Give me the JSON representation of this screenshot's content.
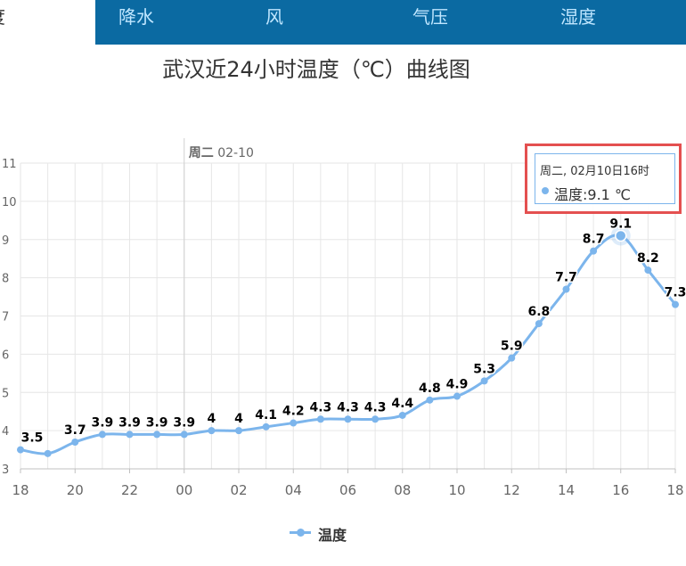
{
  "tabs": [
    {
      "label": "度",
      "active": true
    },
    {
      "label": "降水",
      "active": false
    },
    {
      "label": "风",
      "active": false
    },
    {
      "label": "气压",
      "active": false
    },
    {
      "label": "湿度",
      "active": false
    }
  ],
  "colors": {
    "tab_bar": "#0b6aa2",
    "tab_text": "#bfe6ff",
    "series": "#7cb5ec",
    "grid": "#e6e6e6",
    "highlight_border": "#e45050"
  },
  "chart_data": {
    "type": "line",
    "title": "武汉近24小时温度（℃）曲线图",
    "x": [
      "18",
      "19",
      "20",
      "21",
      "22",
      "23",
      "00",
      "01",
      "02",
      "03",
      "04",
      "05",
      "06",
      "07",
      "08",
      "09",
      "10",
      "11",
      "12",
      "13",
      "14",
      "15",
      "16",
      "17",
      "18"
    ],
    "x_tick_labels": [
      "18",
      "20",
      "22",
      "00",
      "02",
      "04",
      "06",
      "08",
      "10",
      "12",
      "14",
      "16",
      "18"
    ],
    "series": [
      {
        "name": "温度",
        "values": [
          3.5,
          3.4,
          3.7,
          3.9,
          3.9,
          3.9,
          3.9,
          4,
          4,
          4.1,
          4.2,
          4.3,
          4.3,
          4.3,
          4.4,
          4.8,
          4.9,
          5.3,
          5.9,
          6.8,
          7.7,
          8.7,
          9.1,
          8.2,
          7.3
        ],
        "data_labels": [
          "3.5",
          "",
          "3.7",
          "3.9",
          "3.9",
          "3.9",
          "3.9",
          "4",
          "4",
          "4.1",
          "4.2",
          "4.3",
          "4.3",
          "4.3",
          "4.4",
          "4.8",
          "4.9",
          "5.3",
          "5.9",
          "6.8",
          "7.7",
          "8.7",
          "9.1",
          "8.2",
          "7.3"
        ]
      }
    ],
    "ylim": [
      3,
      11
    ],
    "y_ticks": [
      "3",
      "4",
      "5",
      "6",
      "7",
      "8",
      "9",
      "10",
      "11"
    ],
    "grid": true,
    "legend_position": "bottom-center",
    "day_separator": {
      "at_x": "00",
      "label_bold": "周二",
      "label_date": "02-10"
    },
    "highlighted_point": "16",
    "tooltip": {
      "header": "周二, 02月10日16时",
      "series_name": "温度",
      "value_text": "9.1 ℃"
    }
  }
}
